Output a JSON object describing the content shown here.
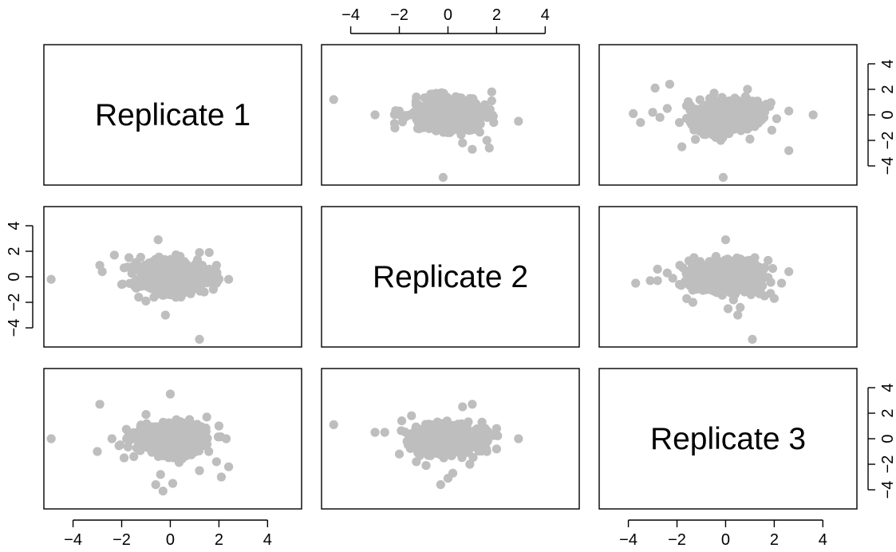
{
  "chart_data": {
    "type": "scatter",
    "variables": [
      "Replicate 1",
      "Replicate 2",
      "Replicate 3"
    ],
    "xlim": [
      -5.2,
      5.4
    ],
    "ylim": [
      -5.5,
      5.5
    ],
    "ticks": [
      -4,
      -2,
      0,
      2,
      4
    ],
    "tick_labels": [
      "−4",
      "−2",
      "0",
      "2",
      "4"
    ],
    "point_color": "#bebebe",
    "axis_color": "#000000",
    "background": "#ffffff",
    "notes": "Pairwise scatter matrix; about 1000 points per panel. Only outlying points are listed individually; the dense core is a bivariate normal cloud centred on (0, 0).",
    "core": {
      "n": 900,
      "sd_x": 0.65,
      "sd_y": 0.55
    },
    "panels": [
      {
        "row": 1,
        "col": 2,
        "x": "Replicate 2",
        "y": "Replicate 1",
        "outliers": [
          [
            -4.7,
            1.2
          ],
          [
            2.9,
            -0.5
          ],
          [
            -0.2,
            -4.9
          ],
          [
            1.0,
            -2.7
          ],
          [
            1.7,
            -2.6
          ],
          [
            0.6,
            -2.2
          ],
          [
            1.6,
            -2.0
          ],
          [
            1.8,
            1.8
          ],
          [
            -1.3,
            1.4
          ],
          [
            1.8,
            1.1
          ],
          [
            -2.0,
            0.3
          ],
          [
            -3.0,
            0.0
          ],
          [
            1.8,
            0.0
          ]
        ]
      },
      {
        "row": 1,
        "col": 3,
        "x": "Replicate 3",
        "y": "Replicate 1",
        "outliers": [
          [
            -3.8,
            0.1
          ],
          [
            -3.5,
            -0.6
          ],
          [
            -3.0,
            0.2
          ],
          [
            -2.7,
            -0.2
          ],
          [
            -2.9,
            2.1
          ],
          [
            -2.3,
            2.4
          ],
          [
            -1.9,
            -0.6
          ],
          [
            -2.4,
            0.5
          ],
          [
            3.6,
            0.0
          ],
          [
            2.6,
            -2.8
          ],
          [
            -0.1,
            -4.9
          ],
          [
            -1.8,
            -2.5
          ],
          [
            -0.2,
            -2.0
          ],
          [
            -1.5,
            0.8
          ],
          [
            1.2,
            0.8
          ],
          [
            2.6,
            0.3
          ],
          [
            2.1,
            -0.3
          ],
          [
            1.9,
            -1.2
          ],
          [
            0.9,
            2.0
          ],
          [
            1.0,
            -1.9
          ]
        ]
      },
      {
        "row": 2,
        "col": 1,
        "x": "Replicate 1",
        "y": "Replicate 2",
        "outliers": [
          [
            -4.9,
            -0.2
          ],
          [
            -2.9,
            0.9
          ],
          [
            -2.8,
            0.4
          ],
          [
            -2.3,
            1.7
          ],
          [
            -1.7,
            1.5
          ],
          [
            -1.9,
            0.7
          ],
          [
            -2.0,
            -0.6
          ],
          [
            -1.3,
            -1.6
          ],
          [
            -0.5,
            2.9
          ],
          [
            -0.2,
            -3.0
          ],
          [
            1.2,
            -4.9
          ],
          [
            1.2,
            1.9
          ],
          [
            1.6,
            1.9
          ],
          [
            2.4,
            -0.2
          ],
          [
            1.9,
            -0.5
          ],
          [
            1.6,
            0.6
          ],
          [
            1.9,
            0.9
          ]
        ]
      },
      {
        "row": 2,
        "col": 3,
        "x": "Replicate 3",
        "y": "Replicate 2",
        "outliers": [
          [
            -3.7,
            -0.5
          ],
          [
            -3.1,
            -0.3
          ],
          [
            -2.8,
            -0.3
          ],
          [
            -2.8,
            0.6
          ],
          [
            -2.4,
            0.3
          ],
          [
            -1.3,
            1.5
          ],
          [
            -1.9,
            -0.6
          ],
          [
            -1.5,
            -0.5
          ],
          [
            0.0,
            2.9
          ],
          [
            0.1,
            -2.5
          ],
          [
            0.6,
            -2.4
          ],
          [
            0.5,
            -3.0
          ],
          [
            1.1,
            -4.9
          ],
          [
            2.6,
            0.4
          ],
          [
            2.3,
            -0.5
          ],
          [
            2.0,
            -1.7
          ],
          [
            1.6,
            -1.5
          ],
          [
            1.2,
            1.5
          ]
        ]
      },
      {
        "row": 3,
        "col": 1,
        "x": "Replicate 1",
        "y": "Replicate 3",
        "outliers": [
          [
            -4.9,
            0.0
          ],
          [
            -2.9,
            2.7
          ],
          [
            -3.0,
            -1.0
          ],
          [
            -2.4,
            0.0
          ],
          [
            -1.9,
            -1.5
          ],
          [
            -1.5,
            -1.4
          ],
          [
            0.0,
            3.5
          ],
          [
            0.1,
            -3.5
          ],
          [
            -0.3,
            -4.1
          ],
          [
            -0.6,
            -3.6
          ],
          [
            -0.4,
            -2.8
          ],
          [
            1.2,
            -2.5
          ],
          [
            1.9,
            -1.8
          ],
          [
            2.4,
            -2.2
          ],
          [
            2.1,
            -3.0
          ],
          [
            1.5,
            1.7
          ],
          [
            2.0,
            1.0
          ],
          [
            2.3,
            0.0
          ],
          [
            -1.0,
            1.9
          ]
        ]
      },
      {
        "row": 3,
        "col": 2,
        "x": "Replicate 2",
        "y": "Replicate 3",
        "outliers": [
          [
            -4.7,
            1.1
          ],
          [
            -3.0,
            0.5
          ],
          [
            -2.6,
            0.5
          ],
          [
            -1.5,
            1.8
          ],
          [
            -1.9,
            1.4
          ],
          [
            -2.0,
            -1.2
          ],
          [
            -1.3,
            -1.8
          ],
          [
            -0.9,
            -2.1
          ],
          [
            -0.3,
            -3.6
          ],
          [
            0.0,
            -3.1
          ],
          [
            0.2,
            -2.7
          ],
          [
            0.9,
            -2.0
          ],
          [
            0.6,
            2.5
          ],
          [
            1.0,
            2.7
          ],
          [
            2.9,
            0.0
          ],
          [
            2.0,
            0.8
          ],
          [
            2.0,
            -0.8
          ],
          [
            1.6,
            -1.0
          ],
          [
            1.4,
            1.3
          ]
        ]
      }
    ]
  }
}
